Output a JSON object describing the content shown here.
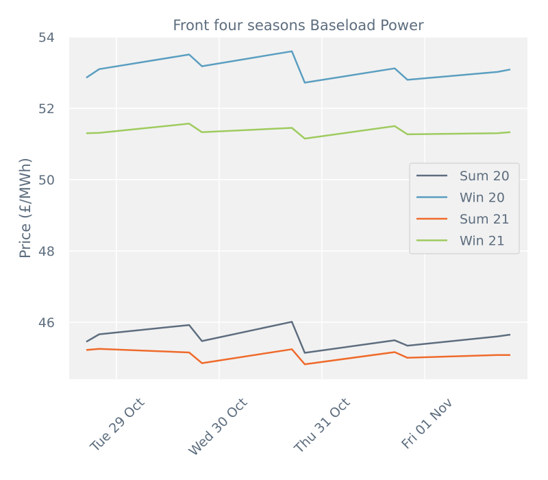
{
  "chart_data": {
    "type": "line",
    "title": "Front four seasons Baseload Power",
    "xlabel": "",
    "ylabel": "Price (£/MWh)",
    "ylim": [
      44.4,
      54.0
    ],
    "yticks": [
      46,
      48,
      50,
      52,
      54
    ],
    "grid": true,
    "legend_position": "center-right",
    "x": [
      "2019-10-28T17:00",
      "2019-10-28T20:00",
      "2019-10-29T17:00",
      "2019-10-29T20:00",
      "2019-10-30T17:00",
      "2019-10-30T20:00",
      "2019-10-31T17:00",
      "2019-10-31T20:00",
      "2019-11-01T17:00",
      "2019-11-01T20:00"
    ],
    "xticks": [
      {
        "value": "2019-10-29T00:00",
        "label": "Tue 29 Oct"
      },
      {
        "value": "2019-10-30T00:00",
        "label": "Wed 30 Oct"
      },
      {
        "value": "2019-10-31T00:00",
        "label": "Thu 31 Oct"
      },
      {
        "value": "2019-11-01T00:00",
        "label": "Fri 01 Nov"
      }
    ],
    "series": [
      {
        "name": "Sum 20",
        "color": "#5d6d7e",
        "values": [
          45.45,
          45.66,
          45.92,
          45.47,
          46.01,
          45.14,
          45.49,
          45.34,
          45.6,
          45.65
        ]
      },
      {
        "name": "Win 20",
        "color": "#5a9ec0",
        "values": [
          52.86,
          53.1,
          53.51,
          53.18,
          53.6,
          52.72,
          53.12,
          52.8,
          53.02,
          53.09
        ]
      },
      {
        "name": "Sum 21",
        "color": "#ef6a2a",
        "values": [
          45.22,
          45.25,
          45.15,
          44.85,
          45.24,
          44.82,
          45.16,
          45.0,
          45.08,
          45.08
        ]
      },
      {
        "name": "Win 21",
        "color": "#9ecb5e",
        "values": [
          51.3,
          51.31,
          51.57,
          51.33,
          51.45,
          51.15,
          51.5,
          51.27,
          51.3,
          51.33
        ]
      }
    ]
  }
}
